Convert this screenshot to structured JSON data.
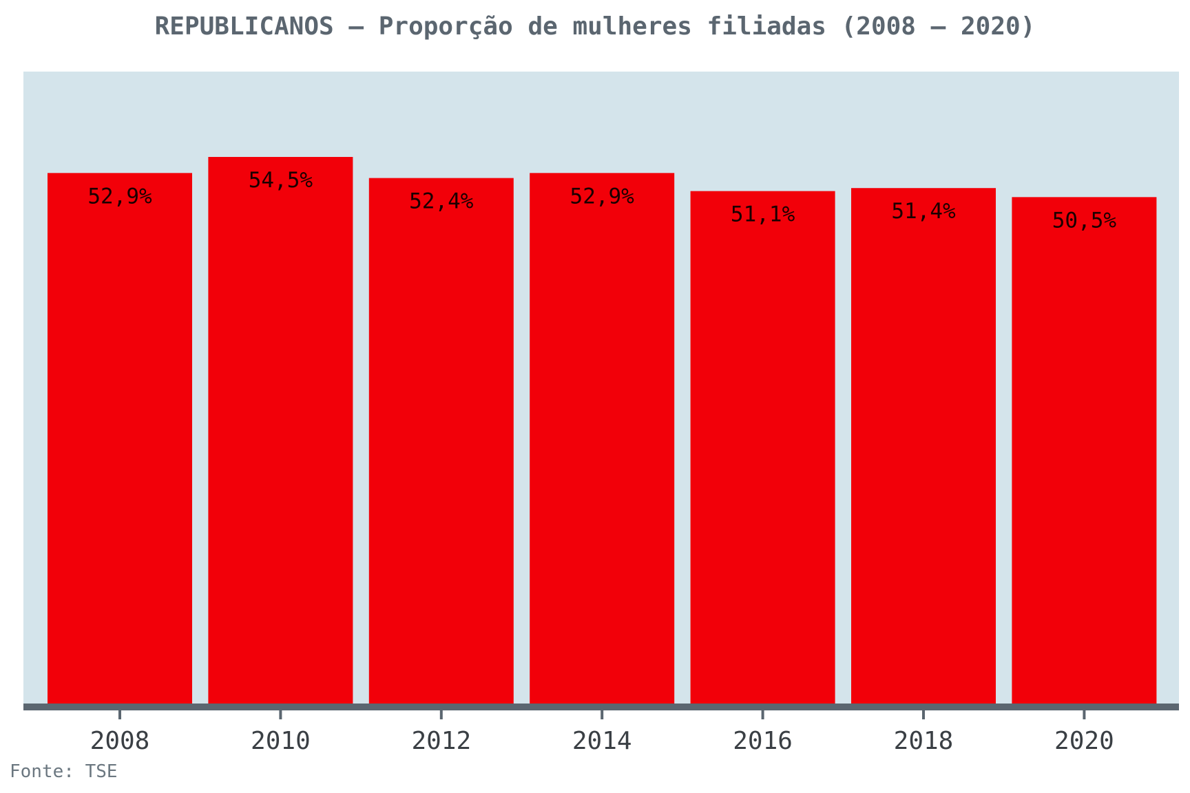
{
  "chart_data": {
    "type": "bar",
    "title": "REPUBLICANOS – Proporção de mulheres filiadas (2008 – 2020)",
    "categories": [
      "2008",
      "2010",
      "2012",
      "2014",
      "2016",
      "2018",
      "2020"
    ],
    "values": [
      52.9,
      54.5,
      52.4,
      52.9,
      51.1,
      51.4,
      50.5
    ],
    "data_labels": [
      "52,9%",
      "54,5%",
      "52,4%",
      "52,9%",
      "51,1%",
      "51,4%",
      "50,5%"
    ],
    "xlabel": "",
    "ylabel": "",
    "ylim": [
      0,
      63
    ],
    "grid": false,
    "legend": "none",
    "bar_color": "#f20009",
    "plot_background": "#d4e4eb",
    "axis_color": "#5b6670"
  },
  "source": "Fonte: TSE"
}
